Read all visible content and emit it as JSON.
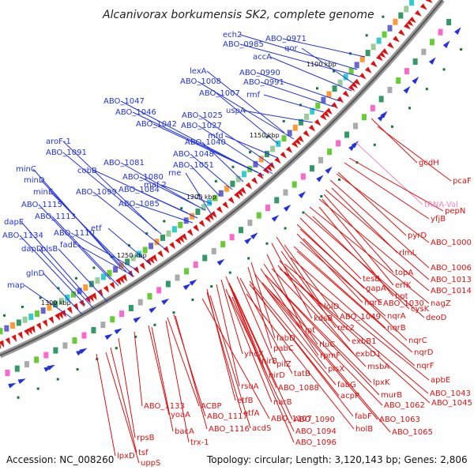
{
  "title": "Alcanivorax borkumensis SK2, complete genome",
  "footer": {
    "accession": "Accession: NC_008260",
    "summary": "Topology: circular; Length: 3,120,143 bp; Genes: 2,806"
  },
  "colors": {
    "forward": "#2233dd",
    "reverse": "#dd1111",
    "trna": "#ee88bb",
    "backbone": "#888888",
    "tick": "#117733"
  },
  "kbp_marks": [
    "1100 kbp",
    "1150 kbp",
    "1200 kbp",
    "1250 kbp",
    "1300 kbp"
  ],
  "forward_genes": [
    "ech2",
    "ABO_0985",
    "ABO_0971",
    "qor",
    "accA",
    "ABO_0990",
    "ABO_0991",
    "lexA",
    "ABO_1008",
    "ABO_1007",
    "rmf",
    "ABO_1047",
    "ABO_1046",
    "ABO_1042",
    "ABO_1025",
    "ABO_1027",
    "uspA",
    "mfd",
    "ABO_1040",
    "ABO_1048",
    "ABO_1051",
    "aroF-1",
    "ABO_1091",
    "ABO_1081",
    "cobB",
    "ABO_1080",
    "ABO_1084",
    "ABO_1085",
    "maf-2",
    "rne",
    "minC",
    "minD",
    "minE",
    "ABO_1099",
    "ABO_1115",
    "ABO_1113",
    "dapE",
    "ABO_1134",
    "ABO_1110",
    "fadE",
    "dapD",
    "plsB",
    "etf",
    "glnD",
    "map"
  ],
  "reverse_genes": [
    "gcdH",
    "pcaF",
    "tRNA-Val",
    "yfjB",
    "pepN",
    "pyrD",
    "ABO_1000",
    "rlmL",
    "topA",
    "erfK",
    "ABO_1006",
    "hpt",
    "ABO_1013",
    "cysK",
    "ABO_1014",
    "tesB",
    "nagZ",
    "gapA",
    "ABO_1030",
    "deoD",
    "lolD",
    "nqrE",
    "nqrA",
    "kdsB",
    "ABO_1049",
    "nqrB",
    "rec2",
    "lpt",
    "nqrC",
    "fabD",
    "pabC",
    "rluC",
    "exbB1",
    "nqrD",
    "rpmF",
    "exbD1",
    "msbA",
    "nqrF",
    "plsX",
    "pilZ",
    "tatB",
    "fabG",
    "lpxK",
    "apbE",
    "nirB",
    "yhcX",
    "nirD",
    "rsuA",
    "ABO_1088",
    "acpP",
    "murB",
    "ABO_1043",
    "ABO_1045",
    "ABO_1062",
    "narB",
    "fabF",
    "etfB",
    "ABO_1063",
    "etfA",
    "ABO_1090",
    "holB",
    "ABO_1065",
    "acdS",
    "ABO_1094",
    "ABO_1096",
    "ABO_1133",
    "ACBP",
    "ABO_1107",
    "yoaA",
    "ABO_1117",
    "ABO_1116",
    "bacA",
    "trx-1",
    "rpsB",
    "tsf",
    "lpxD",
    "uppS"
  ]
}
